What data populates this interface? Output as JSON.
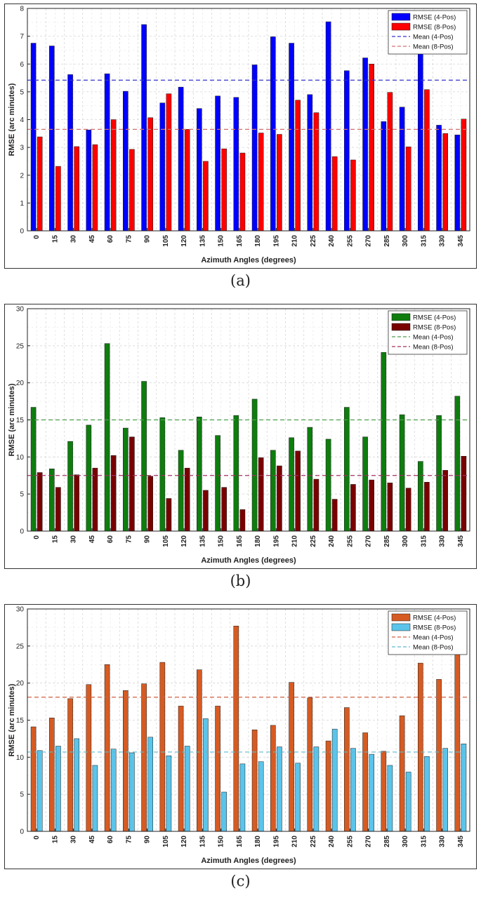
{
  "charts": [
    {
      "caption": "(a)",
      "chart_data": {
        "type": "bar",
        "title": "",
        "xlabel": "Azimuth Angles (degrees)",
        "ylabel": "RMSE (arc minutes)",
        "categories": [
          "0",
          "15",
          "30",
          "45",
          "60",
          "75",
          "90",
          "105",
          "120",
          "135",
          "150",
          "165",
          "180",
          "195",
          "210",
          "225",
          "240",
          "255",
          "270",
          "285",
          "300",
          "315",
          "330",
          "345"
        ],
        "ylim": [
          0,
          8
        ],
        "yticks": [
          "0",
          "1",
          "2",
          "3",
          "4",
          "5",
          "6",
          "7",
          "8"
        ],
        "grid": true,
        "legend_position": "top-right",
        "series": [
          {
            "name": "RMSE (4-Pos)",
            "color": "#0000ff",
            "values": [
              6.75,
              6.65,
              5.62,
              3.63,
              5.65,
              5.02,
              7.42,
              4.6,
              5.17,
              4.4,
              4.85,
              4.8,
              5.97,
              6.98,
              6.75,
              4.9,
              7.52,
              5.76,
              6.22,
              3.93,
              4.45,
              6.42,
              3.8,
              3.45
            ]
          },
          {
            "name": "RMSE (8-Pos)",
            "color": "#ff0000",
            "values": [
              3.38,
              2.32,
              3.03,
              3.1,
              4.0,
              2.93,
              4.07,
              4.93,
              3.65,
              2.5,
              2.95,
              2.8,
              3.52,
              3.47,
              4.7,
              4.25,
              2.67,
              2.55,
              6.0,
              4.98,
              3.02,
              5.08,
              3.5,
              4.02
            ]
          }
        ],
        "means": [
          {
            "name": "Mean (4-Pos)",
            "color": "#3333cc",
            "value": 5.42
          },
          {
            "name": "Mean (8-Pos)",
            "color": "#d07070",
            "value": 3.65
          }
        ]
      }
    },
    {
      "caption": "(b)",
      "chart_data": {
        "type": "bar",
        "title": "",
        "xlabel": "Azimuth Angles (degrees)",
        "ylabel": "RMSE (arc minutes)",
        "categories": [
          "0",
          "15",
          "30",
          "45",
          "60",
          "75",
          "90",
          "105",
          "120",
          "135",
          "150",
          "165",
          "180",
          "195",
          "210",
          "225",
          "240",
          "255",
          "270",
          "285",
          "300",
          "315",
          "330",
          "345"
        ],
        "ylim": [
          0,
          30
        ],
        "yticks": [
          "0",
          "5",
          "10",
          "15",
          "20",
          "25",
          "30"
        ],
        "grid": true,
        "legend_position": "top-right",
        "series": [
          {
            "name": "RMSE (4-Pos)",
            "color": "#0e7d0e",
            "values": [
              16.7,
              8.4,
              12.1,
              14.3,
              25.3,
              13.9,
              20.2,
              15.3,
              10.9,
              15.4,
              12.9,
              15.6,
              17.8,
              10.9,
              12.6,
              14.0,
              12.4,
              16.7,
              12.7,
              24.1,
              15.7,
              9.4,
              15.6,
              18.2
            ]
          },
          {
            "name": "RMSE (8-Pos)",
            "color": "#7a0000",
            "values": [
              7.9,
              5.9,
              7.6,
              8.5,
              10.2,
              12.7,
              7.4,
              4.4,
              8.5,
              5.5,
              5.9,
              2.9,
              9.9,
              8.8,
              10.8,
              7.0,
              4.3,
              6.3,
              6.9,
              6.5,
              5.8,
              6.6,
              8.2,
              10.1
            ]
          }
        ],
        "means": [
          {
            "name": "Mean (4-Pos)",
            "color": "#4c9e4c",
            "value": 15.0
          },
          {
            "name": "Mean (8-Pos)",
            "color": "#a03060",
            "value": 7.5
          }
        ]
      }
    },
    {
      "caption": "(c)",
      "chart_data": {
        "type": "bar",
        "title": "",
        "xlabel": "Azimuth Angles (degrees)",
        "ylabel": "RMSE (arc minutes)",
        "categories": [
          "0",
          "15",
          "30",
          "45",
          "60",
          "75",
          "90",
          "105",
          "120",
          "135",
          "150",
          "165",
          "180",
          "195",
          "210",
          "225",
          "240",
          "255",
          "270",
          "285",
          "300",
          "315",
          "330",
          "345"
        ],
        "ylim": [
          0,
          30
        ],
        "yticks": [
          "0",
          "5",
          "10",
          "15",
          "20",
          "25",
          "30"
        ],
        "grid": true,
        "legend_position": "top-right",
        "series": [
          {
            "name": "RMSE (4-Pos)",
            "color": "#d65b22",
            "values": [
              14.1,
              15.3,
              17.9,
              19.8,
              22.5,
              19.0,
              19.9,
              22.8,
              16.9,
              21.8,
              16.9,
              27.7,
              13.7,
              14.3,
              20.1,
              18.0,
              12.2,
              16.7,
              13.3,
              10.8,
              15.6,
              22.7,
              20.5,
              23.9
            ]
          },
          {
            "name": "RMSE (8-Pos)",
            "color": "#5bc4ea",
            "values": [
              10.9,
              11.5,
              12.5,
              8.9,
              11.1,
              10.6,
              12.7,
              10.2,
              11.5,
              15.2,
              5.3,
              9.1,
              9.4,
              11.4,
              9.2,
              11.4,
              13.8,
              11.2,
              10.4,
              8.9,
              8.0,
              10.1,
              11.2,
              11.8
            ]
          }
        ],
        "means": [
          {
            "name": "Mean (4-Pos)",
            "color": "#d06040",
            "value": 18.1
          },
          {
            "name": "Mean (8-Pos)",
            "color": "#60b8d0",
            "value": 10.7
          }
        ]
      }
    }
  ]
}
